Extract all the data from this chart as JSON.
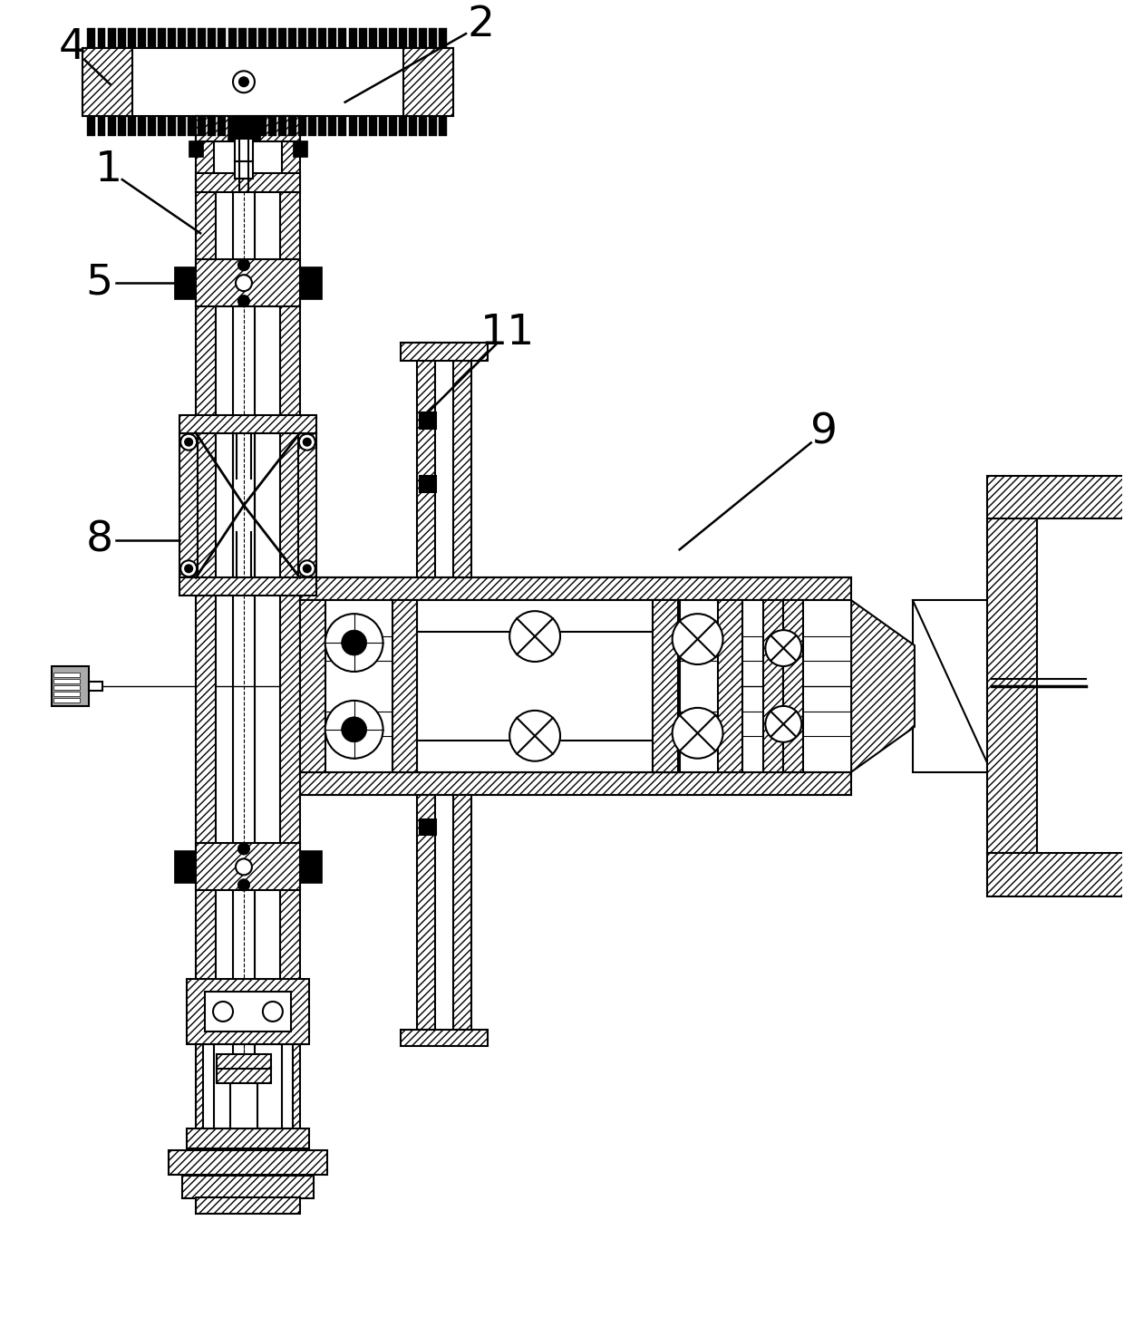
{
  "bg_color": "#ffffff",
  "lw": 1.5,
  "figsize": [
    12.4,
    14.64
  ],
  "dpi": 100,
  "label_fontsize": 34,
  "label_lw": 1.8
}
